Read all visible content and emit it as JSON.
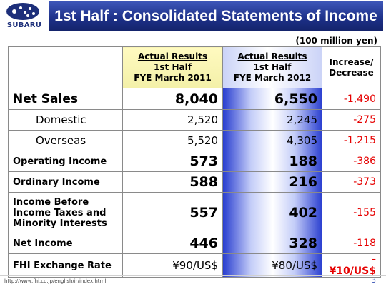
{
  "logo": {
    "text": "SUBARU"
  },
  "title": "1st Half : Consolidated Statements of Income",
  "unit": "(100 million yen)",
  "table": {
    "headers": {
      "col2011": {
        "line1": "Actual Results",
        "line2": "1st Half",
        "line3": "FYE March 2011"
      },
      "col2012": {
        "line1": "Actual Results",
        "line2": "1st Half",
        "line3": "FYE March 2012"
      },
      "change": {
        "line1": "Increase/",
        "line2": "Decrease"
      }
    },
    "rows": [
      {
        "label": "Net Sales",
        "v2011": "8,040",
        "v2012": "6,550",
        "change": "-1,490"
      },
      {
        "label": "Domestic",
        "v2011": "2,520",
        "v2012": "2,245",
        "change": "-275"
      },
      {
        "label": "Overseas",
        "v2011": "5,520",
        "v2012": "4,305",
        "change": "-1,215"
      },
      {
        "label": "Operating Income",
        "v2011": "573",
        "v2012": "188",
        "change": "-386"
      },
      {
        "label": "Ordinary Income",
        "v2011": "588",
        "v2012": "216",
        "change": "-373"
      },
      {
        "label_line1": "Income Before",
        "label_line2": "Income Taxes and",
        "label_line3": "Minority Interests",
        "v2011": "557",
        "v2012": "402",
        "change": "-155"
      },
      {
        "label": "Net Income",
        "v2011": "446",
        "v2012": "328",
        "change": "-118"
      },
      {
        "label": "FHI Exchange Rate",
        "v2011": "¥90/US$",
        "v2012": "¥80/US$",
        "change": "-¥10/US$"
      }
    ]
  },
  "footer": {
    "url": "http://www.fhi.co.jp/english/ir/index.html",
    "page": "3"
  },
  "colors": {
    "title_bar": "#1c2f86",
    "negative": "#e60000",
    "header_2011": "#fffac0",
    "highlight_2012": "#2a3fd0"
  }
}
